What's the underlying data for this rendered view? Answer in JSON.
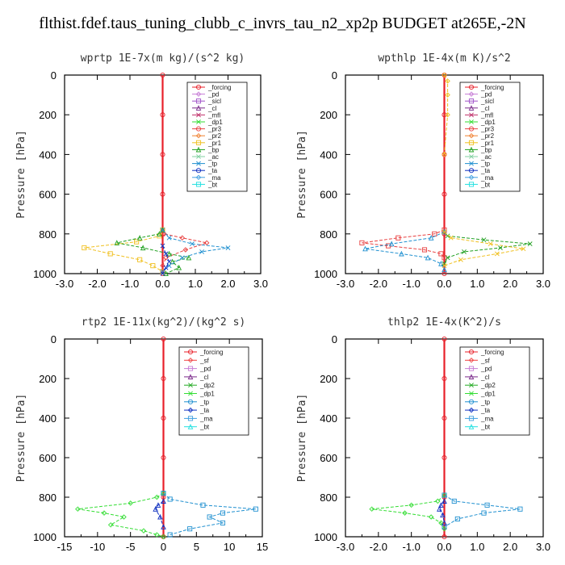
{
  "figure_title": "flthist.fdef.taus_tuning_clubb_c_invrs_tau_n2_xp2p  BUDGET at265E,-2N",
  "colors": {
    "_forcing": "#e8202a",
    "_pd": "#c77dd6",
    "_sicl": "#a050c8",
    "_cl": "#7a2a8a",
    "_mfl": "#c0306a",
    "_dp1": "#33dd33",
    "_dp2": "#22aa22",
    "_pr3": "#e84040",
    "_pr2": "#f08030",
    "_pr1": "#f0c020",
    "_bp": "#20a020",
    "_ac": "#80d0a0",
    "_tp": "#2090d0",
    "_ta": "#1030c0",
    "_ma": "#40a0e0",
    "_bt": "#20e0e0",
    "_sf": "#f04040"
  },
  "chart_data": [
    {
      "type": "line",
      "title": "wprtp  1E-7x(m kg)/(s^2 kg)",
      "ylabel": "Pressure [hPa]",
      "xlim": [
        -3,
        3
      ],
      "ylim": [
        1000,
        0
      ],
      "xticks": [
        "-3.0",
        "-2.0",
        "-1.0",
        "0.0",
        "1.0",
        "2.0",
        "3.0"
      ],
      "yticks": [
        "0",
        "200",
        "400",
        "600",
        "800",
        "1000"
      ],
      "legend": [
        "_forcing",
        "_pd",
        "_sicl",
        "_cl",
        "_mfl",
        "_dp1",
        "_pr3",
        "_pr2",
        "_pr1",
        "_bp",
        "_ac",
        "_tp",
        "_ta",
        "_ma",
        "_bt"
      ],
      "series": [
        {
          "name": "_forcing",
          "x": [
            0,
            0,
            0,
            0,
            0,
            0
          ],
          "y": [
            0,
            200,
            400,
            600,
            800,
            1000
          ]
        },
        {
          "name": "_pr3",
          "x": [
            0,
            0.05,
            0.6,
            1.35,
            0.7,
            0.1,
            0
          ],
          "y": [
            780,
            800,
            820,
            845,
            880,
            920,
            960
          ]
        },
        {
          "name": "_pr1",
          "x": [
            0,
            -0.1,
            -0.8,
            -2.4,
            -1.6,
            -0.7,
            -0.3,
            0
          ],
          "y": [
            780,
            810,
            840,
            870,
            900,
            930,
            960,
            990
          ]
        },
        {
          "name": "_bp",
          "x": [
            0,
            -0.1,
            -0.7,
            -1.4,
            -0.6,
            0.2,
            0.8,
            0.3,
            0.5,
            0.1
          ],
          "y": [
            780,
            800,
            820,
            845,
            870,
            900,
            920,
            940,
            970,
            1000
          ]
        },
        {
          "name": "_tp",
          "x": [
            0,
            0.2,
            0.9,
            2.0,
            1.2,
            0.6,
            0.2,
            0
          ],
          "y": [
            780,
            820,
            850,
            870,
            890,
            920,
            960,
            990
          ]
        },
        {
          "name": "_ta",
          "x": [
            0,
            0.1,
            0.2,
            0.1,
            0
          ],
          "y": [
            860,
            900,
            940,
            970,
            1000
          ]
        }
      ]
    },
    {
      "type": "line",
      "title": "wpthlp  1E-4x(m K)/s^2",
      "ylabel": "Pressure [hPa]",
      "xlim": [
        -3,
        3
      ],
      "ylim": [
        1000,
        0
      ],
      "xticks": [
        "-3.0",
        "-2.0",
        "-1.0",
        "0.0",
        "1.0",
        "2.0",
        "3.0"
      ],
      "yticks": [
        "0",
        "200",
        "400",
        "600",
        "800",
        "1000"
      ],
      "legend": [
        "_forcing",
        "_pd",
        "_sicl",
        "_cl",
        "_mfl",
        "_dp1",
        "_pr3",
        "_pr2",
        "_pr1",
        "_bp",
        "_ac",
        "_tp",
        "_ta",
        "_ma",
        "_bt"
      ],
      "series": [
        {
          "name": "_forcing",
          "x": [
            0,
            0,
            0,
            0,
            0,
            0
          ],
          "y": [
            0,
            200,
            400,
            600,
            800,
            1000
          ]
        },
        {
          "name": "_pr1",
          "x": [
            0,
            0.1,
            0.1,
            0.1,
            0
          ],
          "y": [
            0,
            30,
            100,
            200,
            400
          ]
        },
        {
          "name": "_pr3",
          "x": [
            0,
            -0.3,
            -1.4,
            -2.5,
            -1.7,
            -0.6,
            -0.1,
            0
          ],
          "y": [
            780,
            800,
            820,
            845,
            860,
            880,
            900,
            920
          ]
        },
        {
          "name": "_tp",
          "x": [
            0,
            -0.4,
            -1.6,
            -2.4,
            -1.3,
            -0.5,
            -0.1,
            0
          ],
          "y": [
            790,
            820,
            850,
            875,
            900,
            920,
            950,
            980
          ]
        },
        {
          "name": "_bp",
          "x": [
            0,
            0.1,
            1.2,
            2.6,
            1.7,
            0.6,
            0.1,
            0
          ],
          "y": [
            790,
            810,
            830,
            850,
            870,
            890,
            920,
            950
          ]
        },
        {
          "name": "_pr1",
          "x": [
            0,
            0.2,
            1.4,
            2.4,
            1.6,
            0.5,
            0
          ],
          "y": [
            790,
            820,
            850,
            875,
            900,
            930,
            960
          ]
        }
      ]
    },
    {
      "type": "line",
      "title": "rtp2  1E-11x(kg^2)/(kg^2 s)",
      "ylabel": "Pressure [hPa]",
      "xlim": [
        -15,
        15
      ],
      "ylim": [
        1000,
        0
      ],
      "xticks": [
        "-15",
        "-10",
        "-5",
        "0",
        "5",
        "10",
        "15"
      ],
      "yticks": [
        "0",
        "200",
        "400",
        "600",
        "800",
        "1000"
      ],
      "legend": [
        "_forcing",
        "_sf",
        "_pd",
        "_cl",
        "_dp2",
        "_dp1",
        "_tp",
        "_ta",
        "_ma",
        "_bt"
      ],
      "series": [
        {
          "name": "_forcing",
          "x": [
            0,
            0,
            0,
            0,
            0,
            0
          ],
          "y": [
            0,
            200,
            400,
            600,
            800,
            1000
          ]
        },
        {
          "name": "_dp1",
          "x": [
            0,
            -1,
            -5,
            -13,
            -9,
            -6,
            -8,
            -3,
            -1,
            0
          ],
          "y": [
            780,
            800,
            830,
            860,
            880,
            900,
            940,
            970,
            990,
            1000
          ]
        },
        {
          "name": "_tp",
          "x": [
            0,
            1,
            6,
            14,
            9,
            7,
            9,
            4,
            1
          ],
          "y": [
            780,
            810,
            840,
            860,
            880,
            900,
            930,
            960,
            990
          ]
        },
        {
          "name": "_ta",
          "x": [
            0,
            -0.8,
            -1.2,
            -0.5,
            0
          ],
          "y": [
            820,
            840,
            860,
            900,
            950
          ]
        }
      ]
    },
    {
      "type": "line",
      "title": "thlp2  1E-4x(K^2)/s",
      "ylabel": "Pressure [hPa]",
      "xlim": [
        -3,
        3
      ],
      "ylim": [
        1000,
        0
      ],
      "xticks": [
        "-3.0",
        "-2.0",
        "-1.0",
        "0.0",
        "1.0",
        "2.0",
        "3.0"
      ],
      "yticks": [
        "0",
        "200",
        "400",
        "600",
        "800",
        "1000"
      ],
      "legend": [
        "_forcing",
        "_sf",
        "_pd",
        "_cl",
        "_dp2",
        "_dp1",
        "_tp",
        "_ta",
        "_ma",
        "_bt"
      ],
      "series": [
        {
          "name": "_forcing",
          "x": [
            0,
            0,
            0,
            0,
            0,
            0
          ],
          "y": [
            0,
            200,
            400,
            600,
            800,
            1000
          ]
        },
        {
          "name": "_dp1",
          "x": [
            0,
            -0.2,
            -1.0,
            -2.2,
            -1.2,
            -0.4,
            -0.1,
            0
          ],
          "y": [
            790,
            820,
            840,
            860,
            880,
            900,
            930,
            960
          ]
        },
        {
          "name": "_tp",
          "x": [
            0,
            0.3,
            1.3,
            2.3,
            1.2,
            0.4,
            0
          ],
          "y": [
            790,
            820,
            840,
            860,
            880,
            910,
            950
          ]
        },
        {
          "name": "_ta",
          "x": [
            0,
            -0.1,
            -0.15,
            -0.05,
            0
          ],
          "y": [
            820,
            840,
            860,
            890,
            930
          ]
        }
      ]
    }
  ]
}
